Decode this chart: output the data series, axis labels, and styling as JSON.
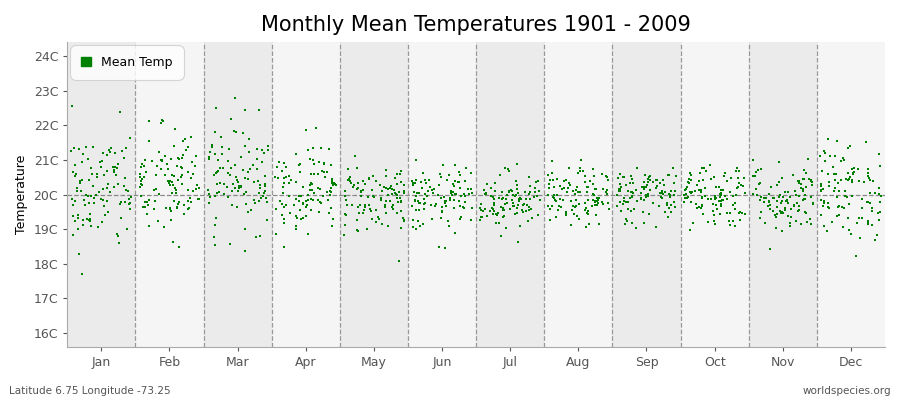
{
  "title": "Monthly Mean Temperatures 1901 - 2009",
  "ylabel": "Temperature",
  "xlabel_months": [
    "Jan",
    "Feb",
    "Mar",
    "Apr",
    "May",
    "Jun",
    "Jul",
    "Aug",
    "Sep",
    "Oct",
    "Nov",
    "Dec"
  ],
  "ytick_labels": [
    "16C",
    "17C",
    "18C",
    "19C",
    "20C",
    "21C",
    "22C",
    "23C",
    "24C"
  ],
  "ytick_values": [
    16,
    17,
    18,
    19,
    20,
    21,
    22,
    23,
    24
  ],
  "ylim": [
    15.6,
    24.4
  ],
  "years": 109,
  "monthly_means": [
    20.1,
    20.3,
    20.55,
    20.2,
    19.9,
    19.85,
    19.85,
    19.9,
    20.0,
    20.0,
    19.9,
    20.1
  ],
  "monthly_stds": [
    0.9,
    0.85,
    0.8,
    0.65,
    0.52,
    0.48,
    0.42,
    0.42,
    0.42,
    0.48,
    0.52,
    0.72
  ],
  "dot_color": "#008000",
  "background_color": "#ffffff",
  "plot_bg_color": "#ffffff",
  "band_color_odd": "#ebebeb",
  "band_color_even": "#f5f5f5",
  "title_fontsize": 15,
  "axis_label_fontsize": 9,
  "tick_fontsize": 9,
  "legend_label": "Mean Temp",
  "footer_left": "Latitude 6.75 Longitude -73.25",
  "footer_right": "worldspecies.org",
  "trend_line_value": 20.0,
  "trend_line_color": "#888888",
  "vline_color": "#999999",
  "marker_size": 3.5
}
